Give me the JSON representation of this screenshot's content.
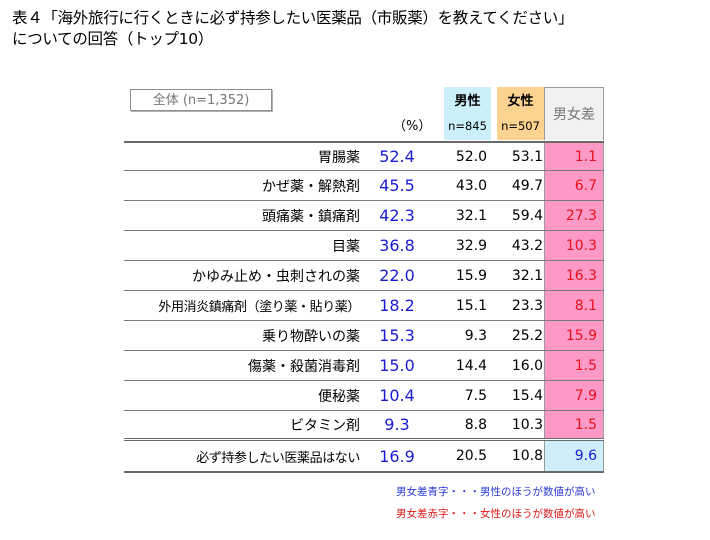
{
  "title": {
    "line1": "表４「海外旅行に行くときに必ず持参したい医薬品（市販薬）を教えてください」",
    "line2": "についての回答（トップ10）"
  },
  "header": {
    "total_box": "全体 (n=1,352)",
    "percent_label": "（%）",
    "male": {
      "label": "男性",
      "n": "n=845"
    },
    "female": {
      "label": "女性",
      "n": "n=507"
    },
    "diff": {
      "label": "男女差"
    }
  },
  "rows": [
    {
      "label": "胃腸薬",
      "total": "52.4",
      "male": "52.0",
      "female": "53.1",
      "diff": "1.1",
      "diff_color": "red"
    },
    {
      "label": "かぜ薬・解熱剤",
      "total": "45.5",
      "male": "43.0",
      "female": "49.7",
      "diff": "6.7",
      "diff_color": "red"
    },
    {
      "label": "頭痛薬・鎮痛剤",
      "total": "42.3",
      "male": "32.1",
      "female": "59.4",
      "diff": "27.3",
      "diff_color": "red"
    },
    {
      "label": "目薬",
      "total": "36.8",
      "male": "32.9",
      "female": "43.2",
      "diff": "10.3",
      "diff_color": "red"
    },
    {
      "label": "かゆみ止め・虫刺されの薬",
      "total": "22.0",
      "male": "15.9",
      "female": "32.1",
      "diff": "16.3",
      "diff_color": "red"
    },
    {
      "label": "外用消炎鎮痛剤（塗り薬・貼り薬）",
      "total": "18.2",
      "male": "15.1",
      "female": "23.3",
      "diff": "8.1",
      "diff_color": "red"
    },
    {
      "label": "乗り物酔いの薬",
      "total": "15.3",
      "male": "9.3",
      "female": "25.2",
      "diff": "15.9",
      "diff_color": "red"
    },
    {
      "label": "傷薬・殺菌消毒剤",
      "total": "15.0",
      "male": "14.4",
      "female": "16.0",
      "diff": "1.5",
      "diff_color": "red"
    },
    {
      "label": "便秘薬",
      "total": "10.4",
      "male": "7.5",
      "female": "15.4",
      "diff": "7.9",
      "diff_color": "red"
    },
    {
      "label": "ビタミン剤",
      "total": "9.3",
      "male": "8.8",
      "female": "10.3",
      "diff": "1.5",
      "diff_color": "red"
    }
  ],
  "extra_row": {
    "label": "必ず持参したい医薬品はない",
    "total": "16.9",
    "male": "20.5",
    "female": "10.8",
    "diff": "9.6",
    "diff_color": "blue"
  },
  "notes": {
    "blue": "男女差青字・・・男性のほうが数値が高い",
    "red": "男女差赤字・・・女性のほうが数値が高い"
  },
  "colors": {
    "male_header": "#ccf0fa",
    "female_header": "#fbd28f",
    "diff_female_bg": "#fc99c6",
    "diff_female_text": "#e8101a",
    "diff_male_bg": "#cdeffa",
    "total_text": "#1a1ad2"
  }
}
